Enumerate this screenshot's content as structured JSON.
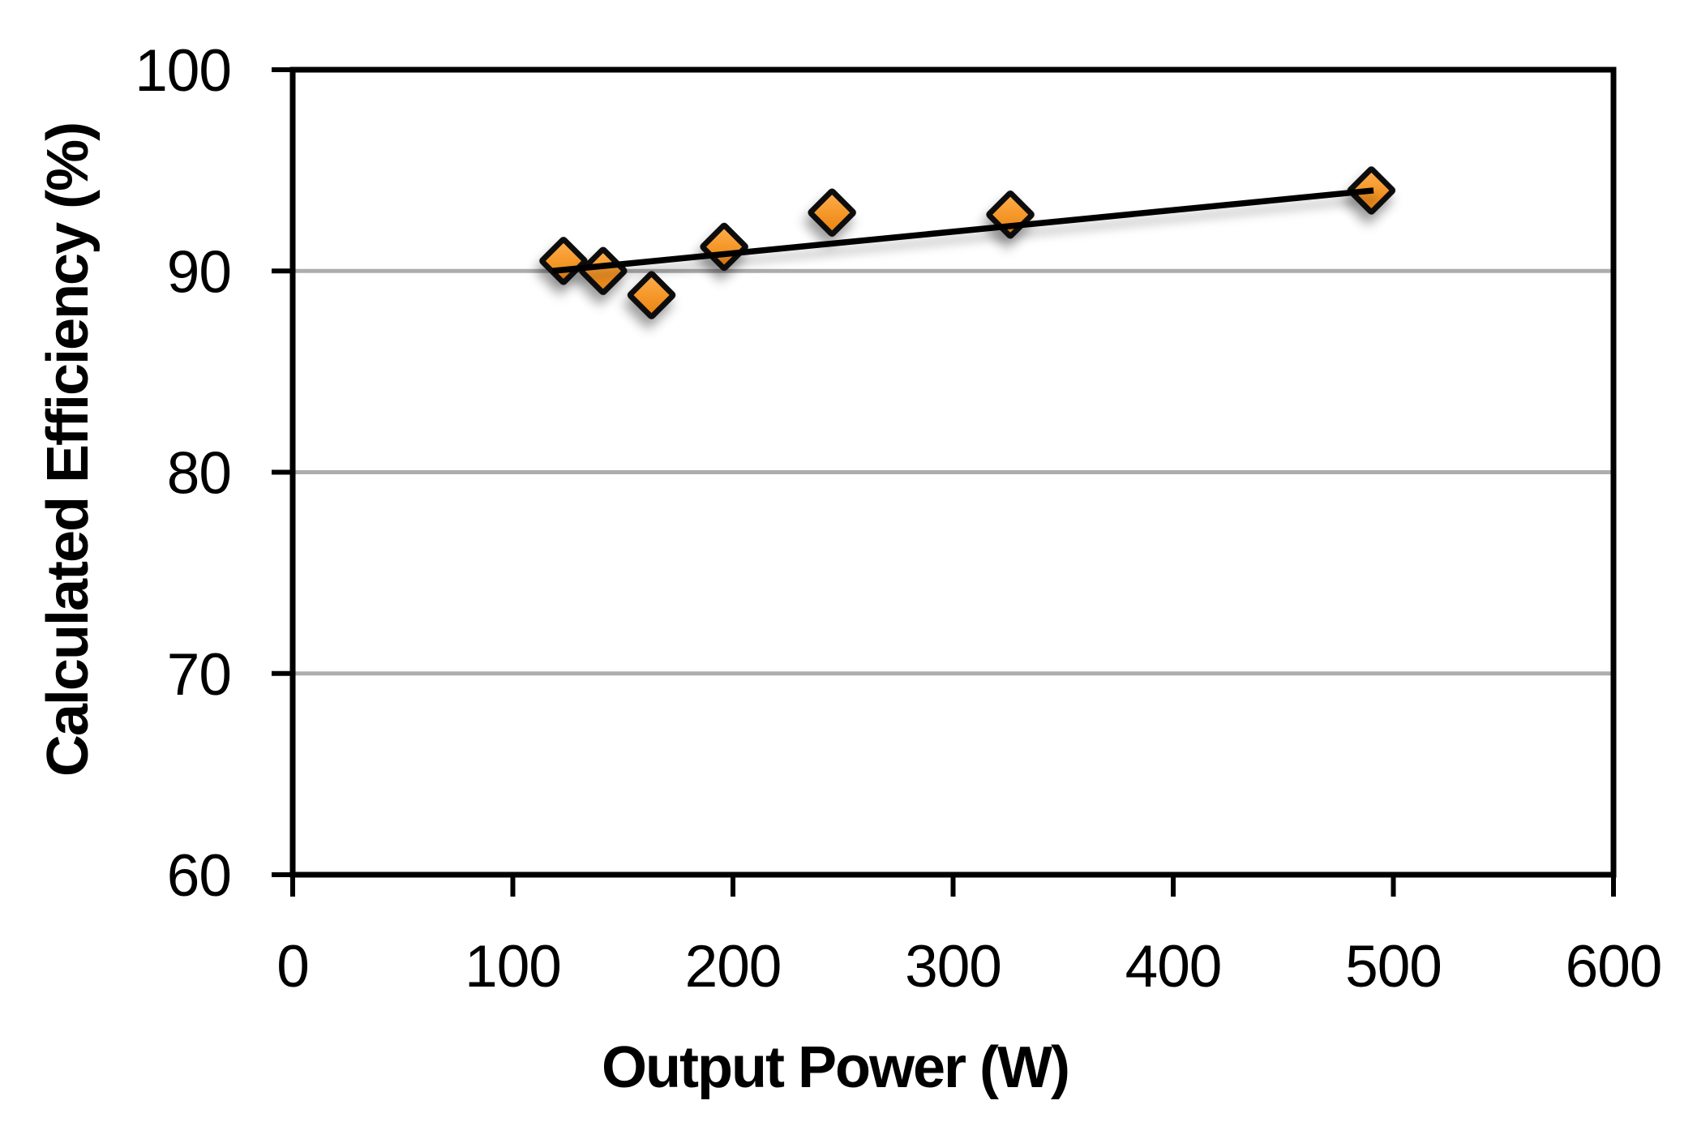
{
  "figure": {
    "background": "#FFFFFF"
  },
  "chart_data": {
    "type": "scatter",
    "title": "",
    "xlabel": "Output Power (W)",
    "ylabel": "Calculated Efficiency (%)",
    "xlim": [
      0,
      600
    ],
    "ylim": [
      60,
      100
    ],
    "x_ticks": [
      0,
      100,
      200,
      300,
      400,
      500,
      600
    ],
    "y_ticks": [
      60,
      70,
      80,
      90,
      100
    ],
    "gridlines_y": [
      70,
      80,
      90
    ],
    "grid": "horizontal-only",
    "legend": "none",
    "series": [
      {
        "name": "Calculated Efficiency",
        "marker": "diamond",
        "marker_fill": "#F2912B",
        "marker_fill_light": "#FCB050",
        "marker_fill_dark": "#E8820F",
        "marker_stroke": "#0D0D0D",
        "points": [
          {
            "x": 123,
            "y": 90.5
          },
          {
            "x": 141,
            "y": 90.0
          },
          {
            "x": 163,
            "y": 88.8
          },
          {
            "x": 196,
            "y": 91.2
          },
          {
            "x": 245,
            "y": 92.9
          },
          {
            "x": 326,
            "y": 92.8
          },
          {
            "x": 490,
            "y": 94.0
          }
        ]
      }
    ],
    "trendline": {
      "type": "linear",
      "x1": 118,
      "y1": 90.0,
      "x2": 491,
      "y2": 94.0,
      "color": "#000000"
    },
    "colors": {
      "axis": "#000000",
      "gridline": "#ADADAD",
      "tick_label": "#000000"
    }
  }
}
